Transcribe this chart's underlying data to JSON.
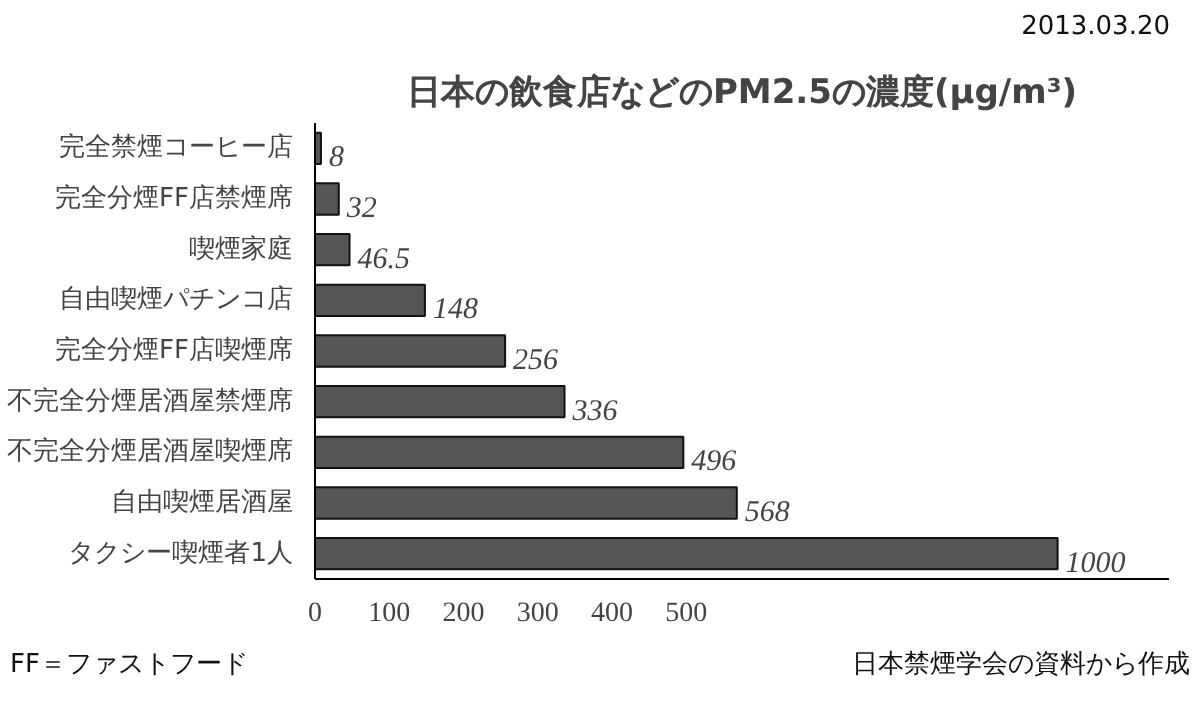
{
  "chart_data": {
    "type": "bar",
    "orientation": "horizontal",
    "title": "日本の飲食店などのPM2.5の濃度(μg/m³)",
    "categories": [
      "完全禁煙コーヒー店",
      "完全分煙FF店禁煙席",
      "喫煙家庭",
      "自由喫煙パチンコ店",
      "完全分煙FF店喫煙席",
      "不完全分煙居酒屋禁煙席",
      "不完全分煙居酒屋喫煙席",
      "自由喫煙居酒屋",
      "タクシー喫煙者1人"
    ],
    "values": [
      8,
      32,
      46.5,
      148,
      256,
      336,
      496,
      568,
      1000
    ],
    "color": "#555555",
    "data_labels": true,
    "xlim": [
      0,
      1150
    ],
    "xticks": [
      0,
      100,
      200,
      300,
      400,
      500
    ],
    "grid": false,
    "annotations": [
      "2013.03.20",
      "FF＝ファストフード",
      "日本禁煙学会の資料から作成"
    ]
  }
}
